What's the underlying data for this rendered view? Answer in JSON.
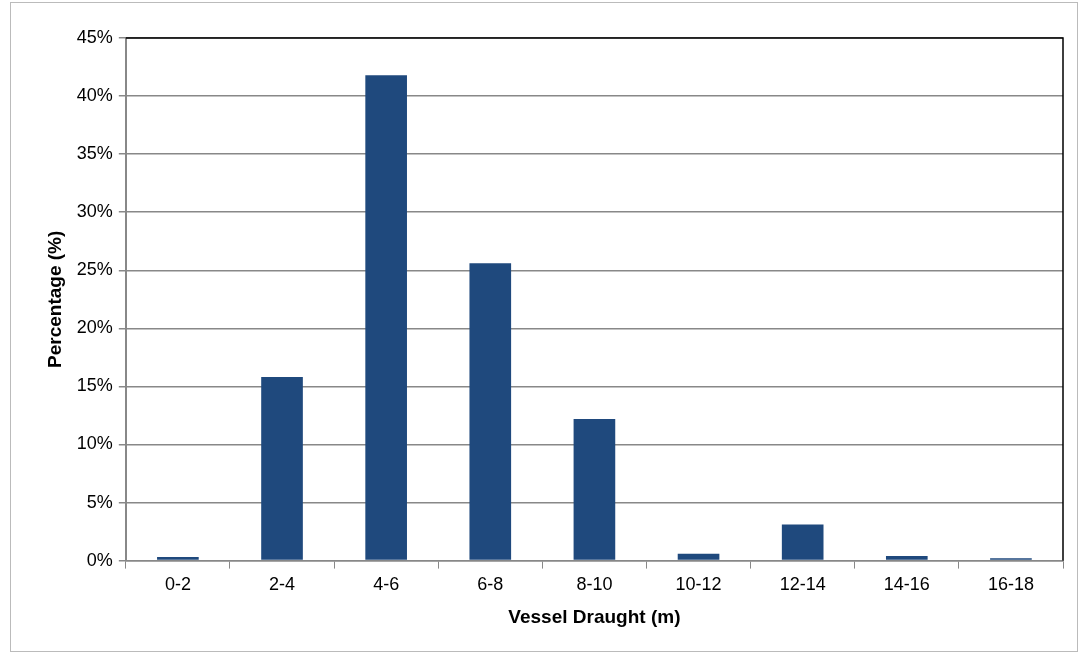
{
  "chart_data": {
    "type": "bar",
    "xlabel": "Vessel Draught (m)",
    "ylabel": "Percentage (%)",
    "categories": [
      "0-2",
      "2-4",
      "4-6",
      "6-8",
      "8-10",
      "10-12",
      "12-14",
      "14-16",
      "16-18"
    ],
    "values": [
      0.3,
      15.8,
      41.8,
      25.6,
      12.2,
      0.6,
      3.1,
      0.4,
      0.2
    ],
    "color": "#1f497d",
    "ylim": [
      0,
      45
    ],
    "yticks": [
      {
        "value": 0,
        "label": "0%"
      },
      {
        "value": 5,
        "label": "5%"
      },
      {
        "value": 10,
        "label": "10%"
      },
      {
        "value": 15,
        "label": "15%"
      },
      {
        "value": 20,
        "label": "20%"
      },
      {
        "value": 25,
        "label": "25%"
      },
      {
        "value": 30,
        "label": "30%"
      },
      {
        "value": 35,
        "label": "35%"
      },
      {
        "value": 40,
        "label": "40%"
      },
      {
        "value": 45,
        "label": "45%"
      }
    ],
    "grid": "y",
    "legend": false
  }
}
